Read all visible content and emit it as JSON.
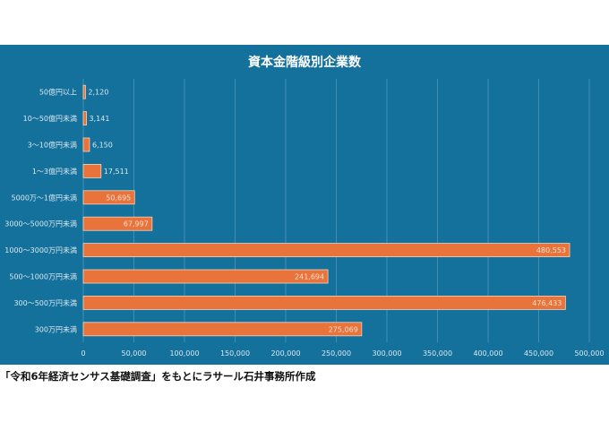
{
  "chart_data": {
    "type": "bar",
    "orientation": "horizontal",
    "title": "資本金階級別企業数",
    "categories": [
      "50億円以上",
      "10～50億円未満",
      "3～10億円未満",
      "1～3億円未満",
      "5000万～1億円未満",
      "3000～5000万円未満",
      "1000～3000万円未満",
      "500～1000万円未満",
      "300～500万円未満",
      "300万円未満"
    ],
    "values": [
      2120,
      3141,
      6150,
      17511,
      50695,
      67997,
      480553,
      241694,
      476433,
      275069
    ],
    "data_labels": [
      "2,120",
      "3,141",
      "6,150",
      "17,511",
      "50,695",
      "67,997",
      "480,553",
      "241,694",
      "476,433",
      "275,069"
    ],
    "xlim": [
      0,
      500000
    ],
    "xticks": [
      0,
      50000,
      100000,
      150000,
      200000,
      250000,
      300000,
      350000,
      400000,
      450000,
      500000
    ],
    "xtick_labels": [
      "0",
      "50,000",
      "100,000",
      "150,000",
      "200,000",
      "250,000",
      "300,000",
      "350,000",
      "400,000",
      "450,000",
      "500,000"
    ],
    "grid": true,
    "colors": {
      "background": "#13719c",
      "bar": "#e8743b",
      "grid": "#4f97b9",
      "text": "#dce8f0",
      "title": "#ffffff",
      "label_inside": "#f7e0d3"
    }
  },
  "caption": "「令和6年経済センサス基礎調査」をもとにラサール石井事務所作成"
}
